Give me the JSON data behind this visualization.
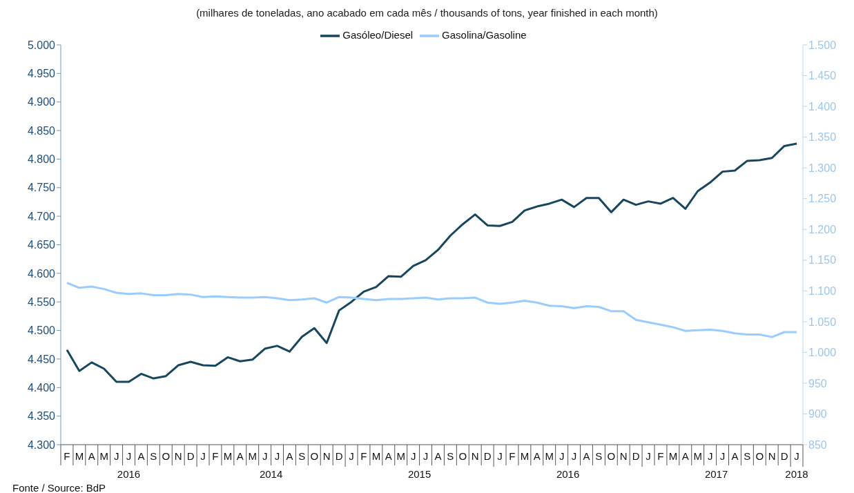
{
  "chart_data": {
    "type": "line",
    "title": "(milhares de toneladas, ano acabado em cada mês / thousands of tons, year finished in each month)",
    "categories": [
      "F",
      "M",
      "A",
      "M",
      "J",
      "J",
      "A",
      "S",
      "O",
      "N",
      "D",
      "J",
      "F",
      "M",
      "A",
      "M",
      "J",
      "J",
      "A",
      "S",
      "O",
      "N",
      "D",
      "J",
      "F",
      "M",
      "A",
      "M",
      "J",
      "J",
      "A",
      "S",
      "O",
      "N",
      "D",
      "J",
      "F",
      "M",
      "A",
      "M",
      "J",
      "J",
      "A",
      "S",
      "O",
      "N",
      "D",
      "J",
      "F",
      "M",
      "A",
      "M",
      "J",
      "J",
      "A",
      "S",
      "O",
      "N",
      "D",
      "J"
    ],
    "series": [
      {
        "name": "Gasóleo/Diesel",
        "color": "#17465f",
        "values": [
          4466,
          4429,
          4444,
          4433,
          4410,
          4410,
          4424,
          4416,
          4420,
          4439,
          4445,
          4439,
          4438,
          4453,
          4446,
          4449,
          4468,
          4473,
          4463,
          4489,
          4504,
          4478,
          4535,
          4550,
          4568,
          4576,
          4595,
          4594,
          4613,
          4623,
          4641,
          4666,
          4686,
          4703,
          4684,
          4683,
          4690,
          4710,
          4717,
          4722,
          4729,
          4716,
          4732,
          4732,
          4707,
          4729,
          4720,
          4726,
          4722,
          4732,
          4713,
          4744,
          4759,
          4778,
          4780,
          4797,
          4798,
          4802,
          4823,
          4827
        ]
      },
      {
        "name": "Gasolina/Gasoline",
        "color": "#99ccff",
        "axis": "y2",
        "values": [
          1113,
          1105,
          1107,
          1103,
          1097,
          1095,
          1096,
          1093,
          1093,
          1095,
          1094,
          1090,
          1091,
          1090,
          1089,
          1089,
          1090,
          1088,
          1085,
          1086,
          1088,
          1081,
          1090,
          1089,
          1087,
          1085,
          1087,
          1087,
          1088,
          1089,
          1086,
          1088,
          1088,
          1089,
          1081,
          1079,
          1081,
          1084,
          1081,
          1076,
          1075,
          1072,
          1075,
          1074,
          1067,
          1067,
          1053,
          1049,
          1045,
          1041,
          1035,
          1036,
          1037,
          1035,
          1031,
          1029,
          1029,
          1025,
          1033,
          1033
        ]
      }
    ],
    "ylim": [
      4300,
      5000
    ],
    "yticks": [
      {
        "value": 4300,
        "label": "4.300"
      },
      {
        "value": 4350,
        "label": "4.350"
      },
      {
        "value": 4400,
        "label": "4.400"
      },
      {
        "value": 4450,
        "label": "4.450"
      },
      {
        "value": 4500,
        "label": "4.500"
      },
      {
        "value": 4550,
        "label": "4.550"
      },
      {
        "value": 4600,
        "label": "4.600"
      },
      {
        "value": 4650,
        "label": "4.650"
      },
      {
        "value": 4700,
        "label": "4.700"
      },
      {
        "value": 4750,
        "label": "4.750"
      },
      {
        "value": 4800,
        "label": "4.800"
      },
      {
        "value": 4850,
        "label": "4.850"
      },
      {
        "value": 4900,
        "label": "4.900"
      },
      {
        "value": 4950,
        "label": "4.950"
      },
      {
        "value": 5000,
        "label": "5.000"
      }
    ],
    "y2lim": [
      850,
      1500
    ],
    "y2ticks": [
      850,
      900,
      950,
      {
        "value": 1000,
        "label": "1.000"
      },
      {
        "value": 1050,
        "label": "1.050"
      },
      {
        "value": 1100,
        "label": "1.100"
      },
      {
        "value": 1150,
        "label": "1.150"
      },
      {
        "value": 1200,
        "label": "1.200"
      },
      {
        "value": 1250,
        "label": "1.250"
      },
      {
        "value": 1300,
        "label": "1.300"
      },
      {
        "value": 1350,
        "label": "1.350"
      },
      {
        "value": 1400,
        "label": "1.400"
      },
      {
        "value": 1450,
        "label": "1.450"
      },
      {
        "value": 1500,
        "label": "1.500"
      }
    ],
    "annotations": [
      "2016",
      "2014",
      "2015",
      "2016",
      "2017",
      "2018",
      "Fonte / Source: BdP"
    ],
    "legend": "top",
    "grid": false,
    "marker": "none",
    "line_style": "solid"
  }
}
